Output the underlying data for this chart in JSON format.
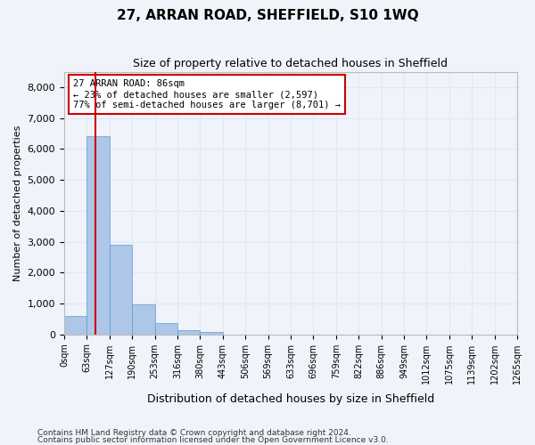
{
  "title": "27, ARRAN ROAD, SHEFFIELD, S10 1WQ",
  "subtitle": "Size of property relative to detached houses in Sheffield",
  "xlabel": "Distribution of detached houses by size in Sheffield",
  "ylabel": "Number of detached properties",
  "bin_labels": [
    "0sqm",
    "63sqm",
    "127sqm",
    "190sqm",
    "253sqm",
    "316sqm",
    "380sqm",
    "443sqm",
    "506sqm",
    "569sqm",
    "633sqm",
    "696sqm",
    "759sqm",
    "822sqm",
    "886sqm",
    "949sqm",
    "1012sqm",
    "1075sqm",
    "1139sqm",
    "1202sqm",
    "1265sqm"
  ],
  "bar_values": [
    600,
    6400,
    2900,
    960,
    360,
    140,
    70,
    0,
    0,
    0,
    0,
    0,
    0,
    0,
    0,
    0,
    0,
    0,
    0,
    0
  ],
  "bar_color": "#aec6e8",
  "bar_edge_color": "#5a9fd4",
  "grid_color": "#dce9f5",
  "background_color": "#f0f4fa",
  "red_line_x": 1.37,
  "annotation_text": "27 ARRAN ROAD: 86sqm\n← 23% of detached houses are smaller (2,597)\n77% of semi-detached houses are larger (8,701) →",
  "annotation_box_color": "#ffffff",
  "annotation_border_color": "#cc0000",
  "ylim": [
    0,
    8500
  ],
  "yticks": [
    0,
    1000,
    2000,
    3000,
    4000,
    5000,
    6000,
    7000,
    8000
  ],
  "footer_line1": "Contains HM Land Registry data © Crown copyright and database right 2024.",
  "footer_line2": "Contains public sector information licensed under the Open Government Licence v3.0."
}
